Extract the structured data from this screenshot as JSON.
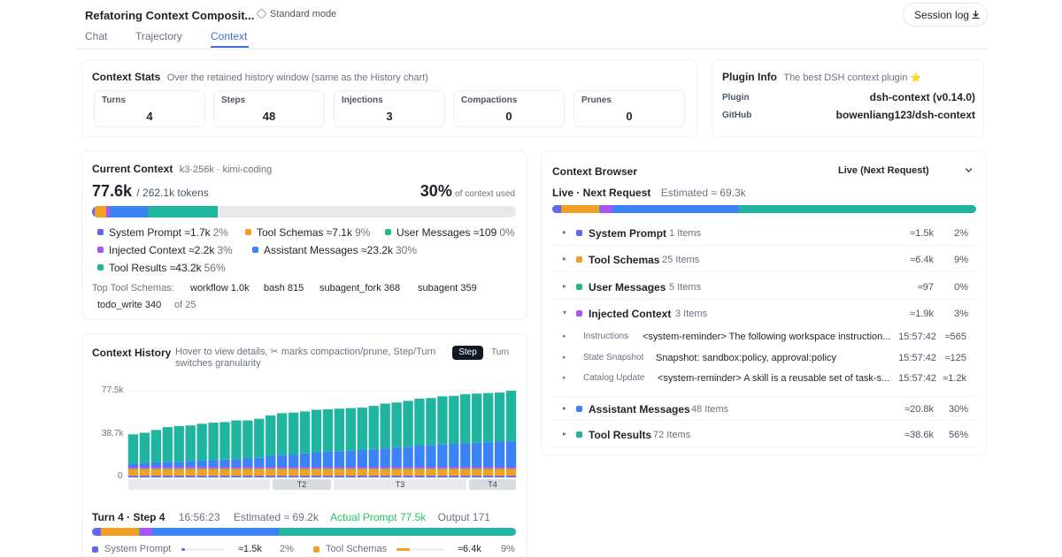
{
  "header": {
    "title": "Refatoring Context Composit...",
    "mode_label": "Standard mode",
    "session_log_label": "Session log"
  },
  "tabs": [
    {
      "label": "Chat",
      "active": false
    },
    {
      "label": "Trajectory",
      "active": false
    },
    {
      "label": "Context",
      "active": true
    }
  ],
  "stats": {
    "title": "Context Stats",
    "subtitle": "Over the retained history window (same as the History chart)",
    "items": [
      {
        "label": "Turns",
        "value": "4"
      },
      {
        "label": "Steps",
        "value": "48"
      },
      {
        "label": "Injections",
        "value": "3"
      },
      {
        "label": "Compactions",
        "value": "0"
      },
      {
        "label": "Prunes",
        "value": "0"
      }
    ]
  },
  "plugin": {
    "title": "Plugin Info",
    "subtitle": "The best DSH context plugin",
    "subtitle_emoji": "⭐",
    "rows": [
      {
        "key": "Plugin",
        "value": "dsh-context (v0.14.0)"
      },
      {
        "key": "GitHub",
        "value": "bowenliang123/dsh-context"
      }
    ]
  },
  "colors": {
    "system_prompt": "#6366f1",
    "tool_schemas": "#f0a024",
    "user_messages": "#22c07d",
    "injected_context": "#a855f7",
    "assistant_messages": "#3b82f6",
    "tool_results": "#1fb5a0",
    "actual_prompt": "#22c55e"
  },
  "current": {
    "title": "Current Context",
    "model": "k3-256k · kimi-coding",
    "tokens_big": "77.6k",
    "tokens_total": "/ 262.1k tokens",
    "pct_big": "30%",
    "pct_label": "of context used",
    "used_fraction": 0.296,
    "legend": [
      {
        "key": "system_prompt",
        "label": "System Prompt ≈1.7k",
        "pct": "2%",
        "share": 0.02
      },
      {
        "key": "tool_schemas",
        "label": "Tool Schemas ≈7.1k",
        "pct": "9%",
        "share": 0.09
      },
      {
        "key": "user_messages",
        "label": "User Messages ≈109",
        "pct": "0%",
        "share": 0.002
      },
      {
        "key": "injected_context",
        "label": "Injected Context ≈2.2k",
        "pct": "3%",
        "share": 0.03
      },
      {
        "key": "assistant_messages",
        "label": "Assistant Messages ≈23.2k",
        "pct": "30%",
        "share": 0.3
      },
      {
        "key": "tool_results",
        "label": "Tool Results ≈43.2k",
        "pct": "56%",
        "share": 0.56
      }
    ],
    "top_tools_label": "Top Tool Schemas:",
    "top_tools": [
      {
        "name": "workflow",
        "value": "1.0k"
      },
      {
        "name": "bash",
        "value": "815"
      },
      {
        "name": "subagent_fork",
        "value": "368"
      },
      {
        "name": "subagent",
        "value": "359"
      },
      {
        "name": "todo_write",
        "value": "340"
      }
    ],
    "top_tools_suffix": "of 25"
  },
  "history": {
    "title": "Context History",
    "hint": "Hover to view details, ✂ marks compaction/prune, Step/Turn switches granularity",
    "toggle_step": "Step",
    "toggle_turn": "Turn",
    "turn_labels": [
      "T2",
      "T3",
      "T4"
    ],
    "footer": {
      "turn_step": "Turn 4 · Step 4",
      "time": "16:56:23",
      "estimated": "Estimated ≈ 69.2k",
      "actual": "Actual Prompt 77.5k",
      "output": "Output 171",
      "mix": [
        0.02,
        0.09,
        0.002,
        0.03,
        0.3,
        0.56
      ],
      "rows": [
        {
          "key": "system_prompt",
          "label": "System Prompt",
          "value": "≈1.5k",
          "pct": "2%",
          "fill": 0.02
        },
        {
          "key": "tool_schemas",
          "label": "Tool Schemas",
          "value": "≈6.4k",
          "pct": "9%",
          "fill": 0.09
        }
      ]
    }
  },
  "chart_data": {
    "type": "bar",
    "title": "Context History",
    "ylim": [
      0,
      77500
    ],
    "yticks": [
      "0",
      "38.7k",
      "77.5k"
    ],
    "stacked": true,
    "series_keys": [
      "system_prompt",
      "tool_schemas",
      "user_messages",
      "injected_context",
      "assistant_messages",
      "tool_results"
    ],
    "totals": [
      38500,
      40000,
      42500,
      45000,
      46000,
      46500,
      48000,
      49000,
      49500,
      51000,
      51000,
      52500,
      55500,
      57500,
      58000,
      59000,
      60500,
      61000,
      61500,
      62000,
      62500,
      64000,
      66000,
      67000,
      68500,
      70500,
      71000,
      72500,
      73000,
      74500,
      75000,
      75500,
      76000,
      77500
    ],
    "assistant": [
      3000,
      3500,
      4000,
      4500,
      4500,
      5000,
      5500,
      6000,
      6500,
      7000,
      7500,
      8000,
      9500,
      10500,
      11000,
      12000,
      13000,
      13500,
      14000,
      14500,
      15000,
      15500,
      16500,
      17500,
      18000,
      19000,
      19500,
      20000,
      20500,
      21000,
      21500,
      22000,
      22500,
      23000
    ],
    "base_system": 1500,
    "base_tools": 6400,
    "base_user": 100,
    "base_injected": 1500
  },
  "browser": {
    "title": "Context Browser",
    "select_value": "Live (Next Request)",
    "live_label": "Live · Next Request",
    "estimated": "Estimated ≈ 69.3k",
    "bar": [
      0.02,
      0.09,
      0.002,
      0.03,
      0.3,
      0.56
    ],
    "rows": [
      {
        "key": "system_prompt",
        "name": "System Prompt",
        "count": "1 Items",
        "tokens": "≈1.5k",
        "pct": "2%",
        "expanded": false
      },
      {
        "key": "tool_schemas",
        "name": "Tool Schemas",
        "count": "25 Items",
        "tokens": "≈6.4k",
        "pct": "9%",
        "expanded": false
      },
      {
        "key": "user_messages",
        "name": "User Messages",
        "count": "5 Items",
        "tokens": "≈97",
        "pct": "0%",
        "expanded": false
      },
      {
        "key": "injected_context",
        "name": "Injected Context",
        "count": "3 Items",
        "tokens": "≈1.9k",
        "pct": "3%",
        "expanded": true
      },
      {
        "key": "assistant_messages",
        "name": "Assistant Messages",
        "count": "48 Items",
        "tokens": "≈20.8k",
        "pct": "30%",
        "expanded": false
      },
      {
        "key": "tool_results",
        "name": "Tool Results",
        "count": "72 Items",
        "tokens": "≈38.6k",
        "pct": "56%",
        "expanded": false
      }
    ],
    "sub_rows": [
      {
        "key": "Instructions",
        "value": "<system-reminder> The following workspace instruction...",
        "time": "15:57:42",
        "tokens": "≈565"
      },
      {
        "key": "State Snapshot",
        "value": "Snapshot: sandbox:policy, approval:policy",
        "time": "15:57:42",
        "tokens": "≈125"
      },
      {
        "key": "Catalog Update",
        "value": "<system-reminder> A skill is a reusable set of task-s...",
        "time": "15:57:42",
        "tokens": "≈1.2k"
      }
    ]
  }
}
